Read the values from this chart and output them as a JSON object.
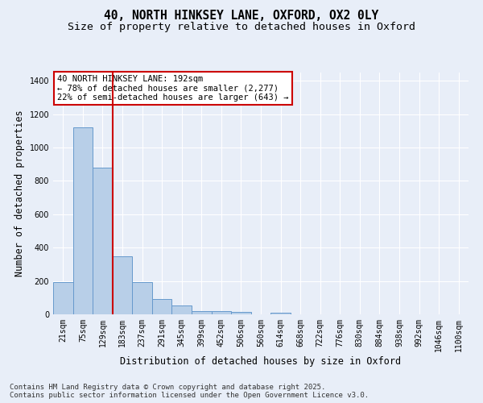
{
  "title_line1": "40, NORTH HINKSEY LANE, OXFORD, OX2 0LY",
  "title_line2": "Size of property relative to detached houses in Oxford",
  "xlabel": "Distribution of detached houses by size in Oxford",
  "ylabel": "Number of detached properties",
  "categories": [
    "21sqm",
    "75sqm",
    "129sqm",
    "183sqm",
    "237sqm",
    "291sqm",
    "345sqm",
    "399sqm",
    "452sqm",
    "506sqm",
    "560sqm",
    "614sqm",
    "668sqm",
    "722sqm",
    "776sqm",
    "830sqm",
    "884sqm",
    "938sqm",
    "992sqm",
    "1046sqm",
    "1100sqm"
  ],
  "values": [
    195,
    1120,
    880,
    350,
    195,
    90,
    55,
    20,
    18,
    15,
    0,
    12,
    0,
    0,
    0,
    0,
    0,
    0,
    0,
    0,
    0
  ],
  "bar_color": "#b8cfe8",
  "bar_edge_color": "#6699cc",
  "vline_color": "#cc0000",
  "annotation_box_text": "40 NORTH HINKSEY LANE: 192sqm\n← 78% of detached houses are smaller (2,277)\n22% of semi-detached houses are larger (643) →",
  "ylim": [
    0,
    1450
  ],
  "yticks": [
    0,
    200,
    400,
    600,
    800,
    1000,
    1200,
    1400
  ],
  "background_color": "#e8eef8",
  "grid_color": "#ffffff",
  "footer_line1": "Contains HM Land Registry data © Crown copyright and database right 2025.",
  "footer_line2": "Contains public sector information licensed under the Open Government Licence v3.0.",
  "title_fontsize": 10.5,
  "subtitle_fontsize": 9.5,
  "axis_label_fontsize": 8.5,
  "tick_fontsize": 7,
  "footer_fontsize": 6.5,
  "ann_fontsize": 7.5
}
